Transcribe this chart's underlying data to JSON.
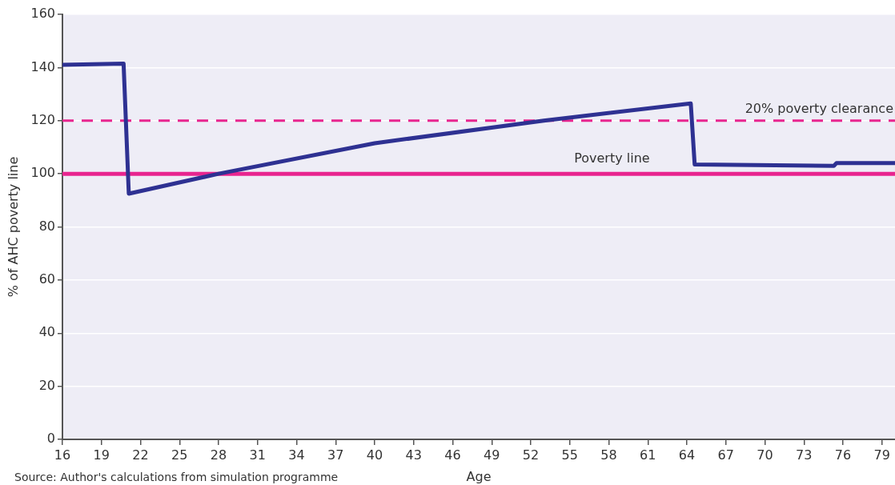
{
  "chart_data": {
    "type": "line",
    "xlabel": "Age",
    "ylabel": "% of AHC poverty line",
    "x": [
      16,
      20.7,
      21.1,
      28,
      40,
      53,
      64.3,
      64.6,
      75.3,
      75.5,
      80
    ],
    "series": [
      {
        "color": "#2e3192",
        "values": [
          141,
          141.5,
          92.5,
          100,
          111.5,
          120,
          126.5,
          103.5,
          103,
          104,
          104
        ]
      }
    ],
    "xlim": [
      16,
      80
    ],
    "xticks": [
      16,
      19,
      22,
      25,
      28,
      31,
      34,
      37,
      40,
      43,
      46,
      49,
      52,
      55,
      58,
      61,
      64,
      67,
      70,
      73,
      76,
      79
    ],
    "ylim": [
      0,
      160
    ],
    "yticks": [
      0,
      20,
      40,
      60,
      80,
      100,
      120,
      140,
      160
    ],
    "ref_lines": [
      {
        "axis": "y",
        "value": 100,
        "label": "Poverty line",
        "color": "#e8258f",
        "line_style": "solid"
      },
      {
        "axis": "y",
        "value": 120,
        "label": "20% poverty clearance",
        "color": "#e8258f",
        "line_style": "dashed"
      }
    ],
    "annotations": [
      "Source: Author's calculations from simulation programme"
    ],
    "grid": "y",
    "legend": false,
    "marker": "none",
    "line_style": "solid"
  }
}
